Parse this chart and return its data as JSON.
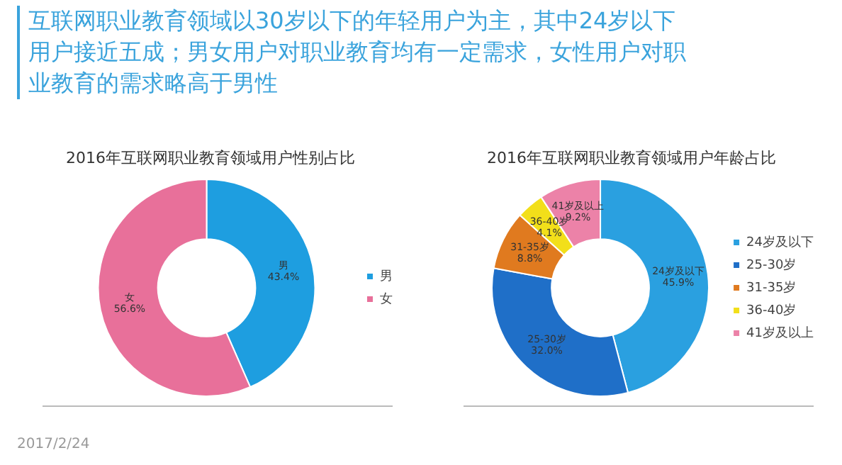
{
  "chart_data": [
    {
      "type": "donut",
      "title": "2016年互联网职业教育领域用户性别占比",
      "categories": [
        "男",
        "女"
      ],
      "values": [
        43.4,
        56.6
      ],
      "value_labels": [
        "43.4%",
        "56.6%"
      ],
      "colors": [
        "#1e9ee0",
        "#e8709a"
      ],
      "legend": "right",
      "annotations": [
        "互联网职业教育领域以30岁以下的年轻用户为主，其中24岁以下用户接近五成；男女用户对职业教育均有一定需求，女性用户对职业教育的需求略高于男性",
        "2017/2/24"
      ]
    },
    {
      "type": "donut",
      "title": "2016年互联网职业教育领域用户年龄占比",
      "categories": [
        "24岁及以下",
        "25-30岁",
        "31-35岁",
        "36-40岁",
        "41岁及以上"
      ],
      "values": [
        45.9,
        32.0,
        8.8,
        4.1,
        9.2
      ],
      "value_labels": [
        "45.9%",
        "32.0%",
        "8.8%",
        "4.1%",
        "9.2%"
      ],
      "colors": [
        "#2aa0e0",
        "#1f6fc8",
        "#e07a1f",
        "#f2df1a",
        "#ec82a8"
      ],
      "legend": "right"
    }
  ]
}
